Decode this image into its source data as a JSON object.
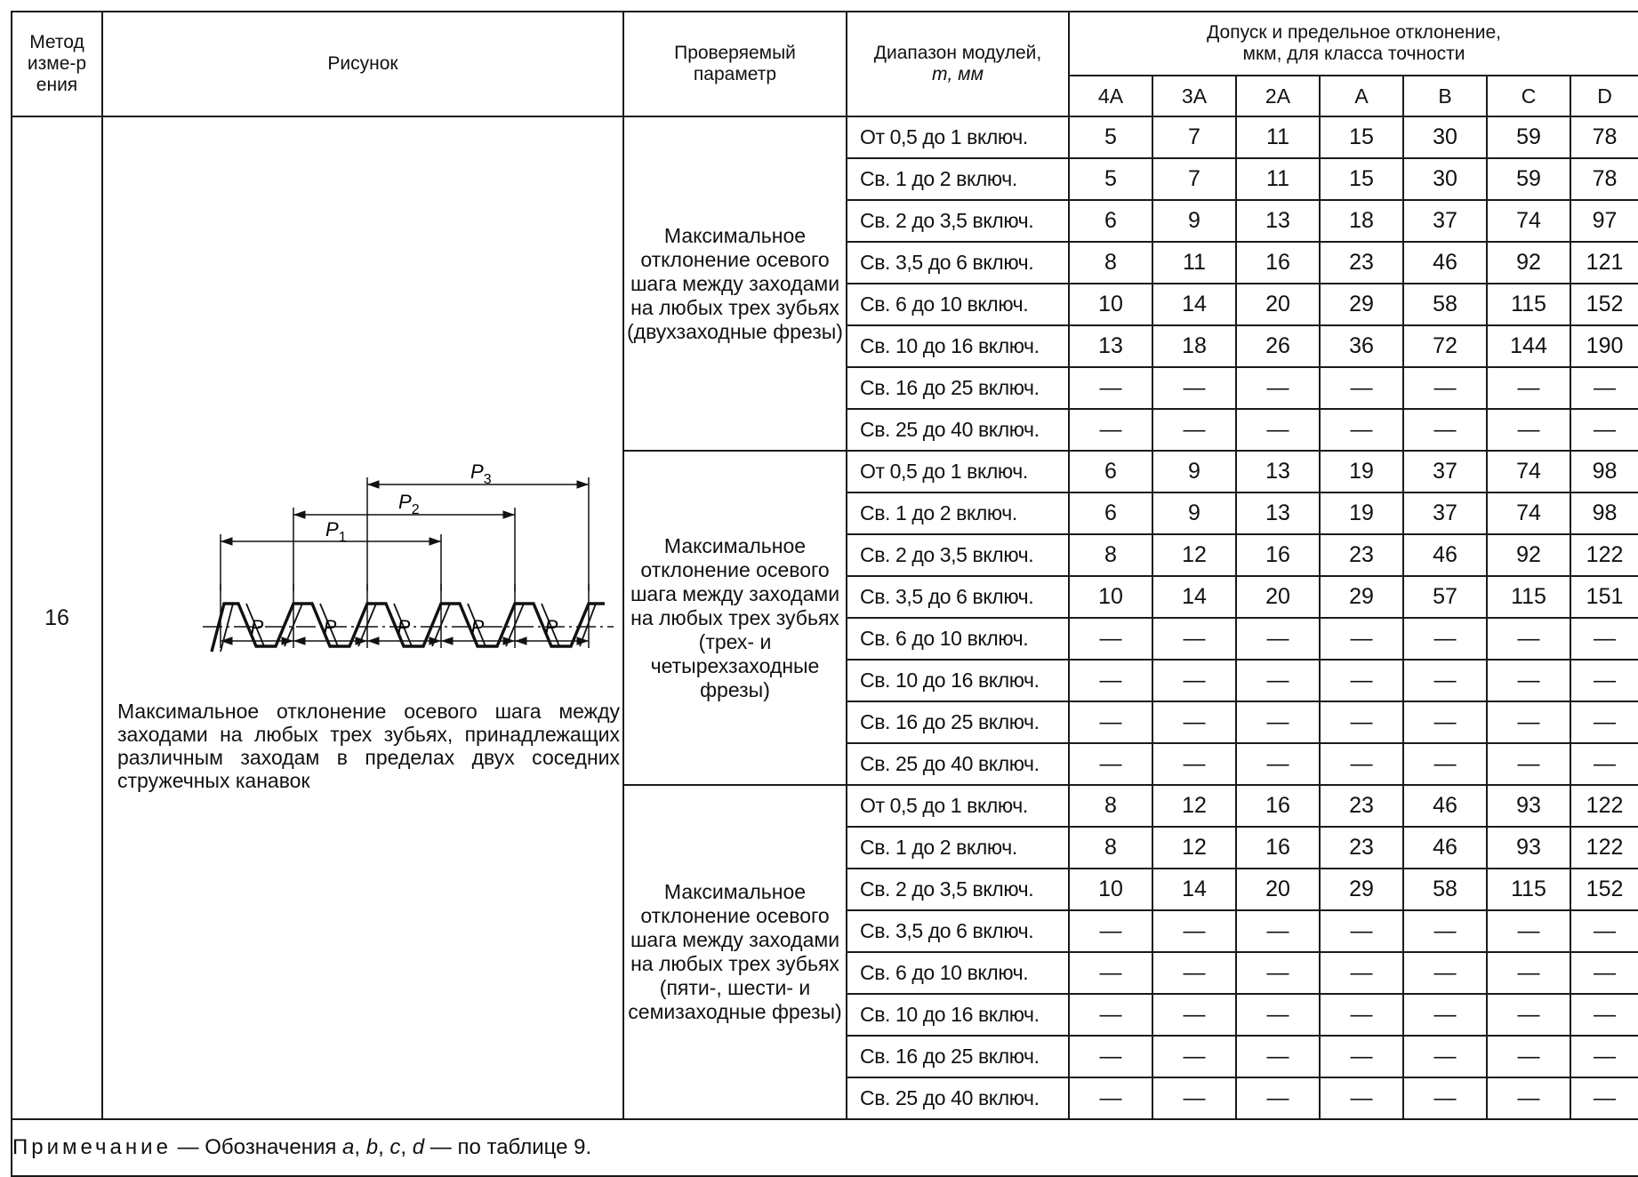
{
  "header": {
    "method": "Метод изме-рения",
    "figure": "Рисунок",
    "parameter": "Проверяемый параметр",
    "module_range_line1": "Диапазон модулей,",
    "module_range_line2": "m, мм",
    "tolerance_line1": "Допуск и предельное отклонение,",
    "tolerance_line2": "мкм, для класса точности",
    "classes": [
      "4A",
      "3A",
      "2A",
      "A",
      "B",
      "C",
      "D"
    ]
  },
  "method_number": "16",
  "figure": {
    "labels": {
      "p1": "P",
      "p1_sub": "1",
      "p2": "P",
      "p2_sub": "2",
      "p3": "P",
      "p3_sub": "3",
      "pitch": "P"
    },
    "caption": "Максимальное отклонение осевого шага между заходами на любых трех зубьях, принадлежащих различным заходам в пределах двух соседних стружечных канавок"
  },
  "groups": [
    {
      "parameter": "Максимальное отклонение осевого шага между заходами на любых трех зубьях (двухзаходные фрезы)",
      "rows": [
        {
          "range": "От 0,5 до 1 включ.",
          "values": [
            "5",
            "7",
            "11",
            "15",
            "30",
            "59",
            "78"
          ]
        },
        {
          "range": "Св. 1 до 2 включ.",
          "values": [
            "5",
            "7",
            "11",
            "15",
            "30",
            "59",
            "78"
          ]
        },
        {
          "range": "Св. 2 до 3,5 включ.",
          "values": [
            "6",
            "9",
            "13",
            "18",
            "37",
            "74",
            "97"
          ]
        },
        {
          "range": "Св. 3,5 до 6 включ.",
          "values": [
            "8",
            "11",
            "16",
            "23",
            "46",
            "92",
            "121"
          ]
        },
        {
          "range": "Св. 6 до 10 включ.",
          "values": [
            "10",
            "14",
            "20",
            "29",
            "58",
            "115",
            "152"
          ]
        },
        {
          "range": "Св. 10 до 16 включ.",
          "values": [
            "13",
            "18",
            "26",
            "36",
            "72",
            "144",
            "190"
          ]
        },
        {
          "range": "Св. 16 до 25 включ.",
          "values": [
            "—",
            "—",
            "—",
            "—",
            "—",
            "—",
            "—"
          ]
        },
        {
          "range": "Св. 25 до 40 включ.",
          "values": [
            "—",
            "—",
            "—",
            "—",
            "—",
            "—",
            "—"
          ]
        }
      ]
    },
    {
      "parameter": "Максимальное отклонение осевого шага между заходами на любых трех зубьях (трех- и четырехзаходные фрезы)",
      "rows": [
        {
          "range": "От 0,5 до 1 включ.",
          "values": [
            "6",
            "9",
            "13",
            "19",
            "37",
            "74",
            "98"
          ]
        },
        {
          "range": "Св. 1 до 2 включ.",
          "values": [
            "6",
            "9",
            "13",
            "19",
            "37",
            "74",
            "98"
          ]
        },
        {
          "range": "Св. 2 до 3,5 включ.",
          "values": [
            "8",
            "12",
            "16",
            "23",
            "46",
            "92",
            "122"
          ]
        },
        {
          "range": "Св. 3,5 до 6 включ.",
          "values": [
            "10",
            "14",
            "20",
            "29",
            "57",
            "115",
            "151"
          ]
        },
        {
          "range": "Св. 6 до 10 включ.",
          "values": [
            "—",
            "—",
            "—",
            "—",
            "—",
            "—",
            "—"
          ]
        },
        {
          "range": "Св. 10 до 16 включ.",
          "values": [
            "—",
            "—",
            "—",
            "—",
            "—",
            "—",
            "—"
          ]
        },
        {
          "range": "Св. 16 до 25 включ.",
          "values": [
            "—",
            "—",
            "—",
            "—",
            "—",
            "—",
            "—"
          ]
        },
        {
          "range": "Св. 25 до 40 включ.",
          "values": [
            "—",
            "—",
            "—",
            "—",
            "—",
            "—",
            "—"
          ]
        }
      ]
    },
    {
      "parameter": "Максимальное отклонение осевого шага между заходами на любых трех зубьях (пяти-, шести- и семизаходные фрезы)",
      "rows": [
        {
          "range": "От 0,5 до 1 включ.",
          "values": [
            "8",
            "12",
            "16",
            "23",
            "46",
            "93",
            "122"
          ]
        },
        {
          "range": "Св. 1 до 2 включ.",
          "values": [
            "8",
            "12",
            "16",
            "23",
            "46",
            "93",
            "122"
          ]
        },
        {
          "range": "Св. 2 до 3,5 включ.",
          "values": [
            "10",
            "14",
            "20",
            "29",
            "58",
            "115",
            "152"
          ]
        },
        {
          "range": "Св. 3,5 до 6 включ.",
          "values": [
            "—",
            "—",
            "—",
            "—",
            "—",
            "—",
            "—"
          ]
        },
        {
          "range": "Св. 6 до 10 включ.",
          "values": [
            "—",
            "—",
            "—",
            "—",
            "—",
            "—",
            "—"
          ]
        },
        {
          "range": "Св. 10 до 16 включ.",
          "values": [
            "—",
            "—",
            "—",
            "—",
            "—",
            "—",
            "—"
          ]
        },
        {
          "range": "Св. 16 до 25 включ.",
          "values": [
            "—",
            "—",
            "—",
            "—",
            "—",
            "—",
            "—"
          ]
        },
        {
          "range": "Св. 25 до 40 включ.",
          "values": [
            "—",
            "—",
            "—",
            "—",
            "—",
            "—",
            "—"
          ]
        }
      ]
    }
  ],
  "note": {
    "label": "Примечание",
    "dash": " — ",
    "text_prefix": "Обозначения ",
    "vars": [
      "a",
      "b",
      "c",
      "d"
    ],
    "sep": ", ",
    "text_suffix": " — по таблице 9."
  }
}
